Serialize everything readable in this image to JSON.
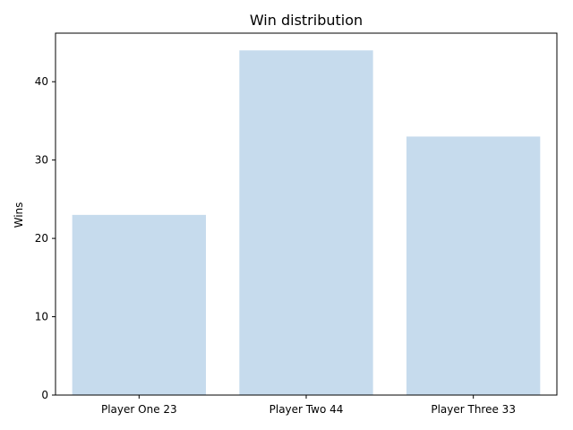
{
  "chart_data": {
    "type": "bar",
    "title": "Win distribution",
    "xlabel": "",
    "ylabel": "Wins",
    "categories": [
      "Player One 23",
      "Player Two 44",
      "Player Three 33"
    ],
    "values": [
      23,
      44,
      33
    ],
    "ylim": [
      0,
      46.2
    ],
    "yticks": [
      0,
      10,
      20,
      30,
      40
    ],
    "bar_color": "#c6dbed",
    "grid": false,
    "legend": "none"
  }
}
